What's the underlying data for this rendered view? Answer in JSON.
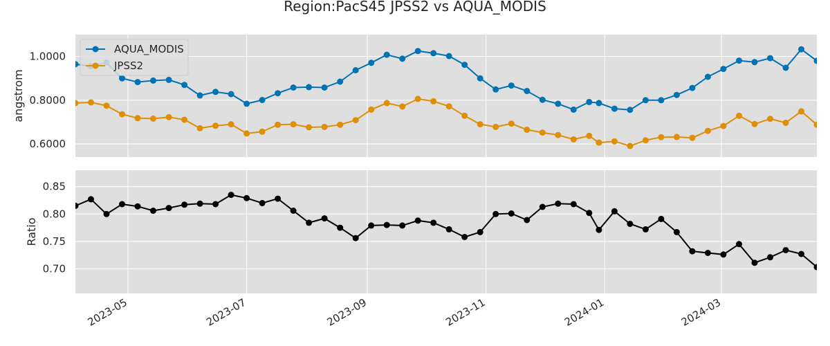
{
  "chart_data": [
    {
      "type": "line",
      "title": "Region:PacS45 JPSS2 vs AQUA_MODIS",
      "ylabel": "angstrom",
      "ylim": [
        0.54,
        1.1
      ],
      "yticks": [
        0.6,
        0.8,
        1.0
      ],
      "ytick_labels": [
        "0.6000",
        "0.8000",
        "1.0000"
      ],
      "grid": true,
      "legend_position": "top-left",
      "x": [
        "2023-04-04",
        "2023-04-12",
        "2023-04-20",
        "2023-04-28",
        "2023-05-06",
        "2023-05-14",
        "2023-05-22",
        "2023-05-30",
        "2023-06-07",
        "2023-06-15",
        "2023-06-23",
        "2023-07-01",
        "2023-07-09",
        "2023-07-17",
        "2023-07-25",
        "2023-08-02",
        "2023-08-10",
        "2023-08-18",
        "2023-08-26",
        "2023-09-03",
        "2023-09-11",
        "2023-09-19",
        "2023-09-27",
        "2023-10-05",
        "2023-10-13",
        "2023-10-21",
        "2023-10-29",
        "2023-11-06",
        "2023-11-14",
        "2023-11-22",
        "2023-11-30",
        "2023-12-08",
        "2023-12-16",
        "2023-12-24",
        "2023-12-29",
        "2024-01-06",
        "2024-01-14",
        "2024-01-22",
        "2024-01-30",
        "2024-02-07",
        "2024-02-15",
        "2024-02-23",
        "2024-03-02",
        "2024-03-10",
        "2024-03-18",
        "2024-03-26",
        "2024-04-03",
        "2024-04-11",
        "2024-04-19"
      ],
      "series": [
        {
          "name": "AQUA_MODIS",
          "color": "#0173b2",
          "values": [
            0.965,
            0.955,
            0.972,
            0.9,
            0.883,
            0.89,
            0.893,
            0.87,
            0.822,
            0.838,
            0.828,
            0.784,
            0.801,
            0.832,
            0.858,
            0.86,
            0.858,
            0.885,
            0.937,
            0.971,
            1.008,
            0.99,
            1.025,
            1.015,
            1.002,
            0.962,
            0.9,
            0.849,
            0.867,
            0.842,
            0.802,
            0.784,
            0.757,
            0.792,
            0.787,
            0.761,
            0.756,
            0.8,
            0.8,
            0.824,
            0.856,
            0.907,
            0.943,
            0.981,
            0.974,
            0.992,
            0.948,
            1.033,
            0.98
          ]
        },
        {
          "name": "JPSS2",
          "color": "#de8f05",
          "values": [
            0.787,
            0.79,
            0.775,
            0.736,
            0.718,
            0.716,
            0.723,
            0.711,
            0.672,
            0.683,
            0.69,
            0.648,
            0.656,
            0.688,
            0.69,
            0.676,
            0.678,
            0.688,
            0.709,
            0.757,
            0.787,
            0.771,
            0.806,
            0.795,
            0.772,
            0.729,
            0.69,
            0.678,
            0.693,
            0.665,
            0.652,
            0.641,
            0.621,
            0.637,
            0.606,
            0.612,
            0.591,
            0.617,
            0.631,
            0.632,
            0.628,
            0.66,
            0.682,
            0.729,
            0.691,
            0.715,
            0.697,
            0.749,
            0.688
          ]
        }
      ]
    },
    {
      "type": "line",
      "ylabel": "Ratio",
      "ylim": [
        0.655,
        0.88
      ],
      "yticks": [
        0.7,
        0.75,
        0.8,
        0.85
      ],
      "ytick_labels": [
        "0.70",
        "0.75",
        "0.80",
        "0.85"
      ],
      "grid": true,
      "x_ticks": [
        "2023-05-01",
        "2023-07-01",
        "2023-09-01",
        "2023-11-01",
        "2024-01-01",
        "2024-03-01"
      ],
      "x_tick_labels": [
        "2023-05",
        "2023-07",
        "2023-09",
        "2023-11",
        "2024-01",
        "2024-03"
      ],
      "series": [
        {
          "color": "#000000",
          "values": [
            0.815,
            0.827,
            0.8,
            0.818,
            0.814,
            0.806,
            0.811,
            0.817,
            0.819,
            0.818,
            0.835,
            0.829,
            0.82,
            0.828,
            0.806,
            0.784,
            0.792,
            0.775,
            0.756,
            0.779,
            0.78,
            0.779,
            0.788,
            0.784,
            0.772,
            0.758,
            0.767,
            0.8,
            0.801,
            0.789,
            0.813,
            0.819,
            0.818,
            0.802,
            0.771,
            0.805,
            0.782,
            0.772,
            0.791,
            0.767,
            0.732,
            0.729,
            0.726,
            0.745,
            0.711,
            0.721,
            0.734,
            0.727,
            0.703
          ]
        }
      ]
    }
  ],
  "colors": {
    "panel_bg": "#dfdfdf",
    "grid": "#ffffff",
    "text": "#262626"
  }
}
